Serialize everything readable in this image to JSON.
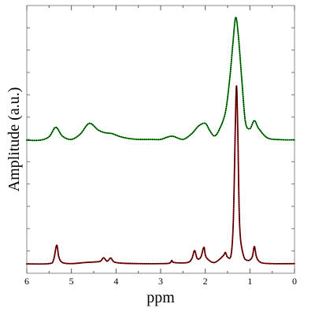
{
  "chart_data": {
    "type": "line",
    "title": "",
    "xlabel": "ppm",
    "ylabel": "Amplitude (a.u.)",
    "x_reversed": true,
    "xlim": [
      6,
      0
    ],
    "ylim": [
      0,
      1
    ],
    "xticks": [
      "6",
      "5",
      "4",
      "3",
      "2",
      "1",
      "0"
    ],
    "grid": false,
    "legend": "none",
    "series": [
      {
        "color": "#00c800",
        "style": "solid",
        "points": [
          [
            6.0,
            0.497
          ],
          [
            5.7,
            0.497
          ],
          [
            5.5,
            0.51
          ],
          [
            5.35,
            0.545
          ],
          [
            5.2,
            0.512
          ],
          [
            5.0,
            0.5
          ],
          [
            4.8,
            0.52
          ],
          [
            4.6,
            0.56
          ],
          [
            4.4,
            0.535
          ],
          [
            4.25,
            0.525
          ],
          [
            4.1,
            0.522
          ],
          [
            3.9,
            0.51
          ],
          [
            3.7,
            0.503
          ],
          [
            3.5,
            0.5
          ],
          [
            3.2,
            0.5
          ],
          [
            3.0,
            0.5
          ],
          [
            2.75,
            0.512
          ],
          [
            2.5,
            0.5
          ],
          [
            2.3,
            0.522
          ],
          [
            2.15,
            0.55
          ],
          [
            2.0,
            0.56
          ],
          [
            1.9,
            0.533
          ],
          [
            1.8,
            0.513
          ],
          [
            1.7,
            0.532
          ],
          [
            1.55,
            0.6
          ],
          [
            1.45,
            0.73
          ],
          [
            1.38,
            0.86
          ],
          [
            1.32,
            0.955
          ],
          [
            1.26,
            0.89
          ],
          [
            1.18,
            0.72
          ],
          [
            1.1,
            0.565
          ],
          [
            1.0,
            0.54
          ],
          [
            0.9,
            0.57
          ],
          [
            0.8,
            0.54
          ],
          [
            0.6,
            0.505
          ],
          [
            0.3,
            0.499
          ],
          [
            0.0,
            0.498
          ]
        ]
      },
      {
        "color": "#000000",
        "style": "dotted",
        "points": [
          [
            6.0,
            0.497
          ],
          [
            5.7,
            0.497
          ],
          [
            5.5,
            0.51
          ],
          [
            5.35,
            0.545
          ],
          [
            5.2,
            0.512
          ],
          [
            5.0,
            0.5
          ],
          [
            4.8,
            0.52
          ],
          [
            4.6,
            0.56
          ],
          [
            4.4,
            0.535
          ],
          [
            4.25,
            0.525
          ],
          [
            4.1,
            0.522
          ],
          [
            3.9,
            0.51
          ],
          [
            3.7,
            0.503
          ],
          [
            3.5,
            0.5
          ],
          [
            3.2,
            0.5
          ],
          [
            3.0,
            0.5
          ],
          [
            2.75,
            0.512
          ],
          [
            2.5,
            0.5
          ],
          [
            2.3,
            0.522
          ],
          [
            2.15,
            0.55
          ],
          [
            2.0,
            0.56
          ],
          [
            1.9,
            0.533
          ],
          [
            1.8,
            0.513
          ],
          [
            1.7,
            0.532
          ],
          [
            1.55,
            0.6
          ],
          [
            1.45,
            0.73
          ],
          [
            1.38,
            0.86
          ],
          [
            1.32,
            0.955
          ],
          [
            1.26,
            0.89
          ],
          [
            1.18,
            0.72
          ],
          [
            1.1,
            0.565
          ],
          [
            1.0,
            0.54
          ],
          [
            0.9,
            0.57
          ],
          [
            0.8,
            0.54
          ],
          [
            0.6,
            0.505
          ],
          [
            0.3,
            0.499
          ],
          [
            0.0,
            0.498
          ]
        ]
      },
      {
        "color": "#c80000",
        "style": "solid",
        "points": [
          [
            6.0,
            0.035
          ],
          [
            5.5,
            0.036
          ],
          [
            5.4,
            0.05
          ],
          [
            5.33,
            0.105
          ],
          [
            5.28,
            0.06
          ],
          [
            5.2,
            0.04
          ],
          [
            5.0,
            0.036
          ],
          [
            4.7,
            0.04
          ],
          [
            4.5,
            0.042
          ],
          [
            4.35,
            0.045
          ],
          [
            4.28,
            0.058
          ],
          [
            4.2,
            0.045
          ],
          [
            4.12,
            0.057
          ],
          [
            4.05,
            0.043
          ],
          [
            3.9,
            0.038
          ],
          [
            3.5,
            0.036
          ],
          [
            3.0,
            0.036
          ],
          [
            2.8,
            0.038
          ],
          [
            2.75,
            0.048
          ],
          [
            2.7,
            0.04
          ],
          [
            2.4,
            0.04
          ],
          [
            2.3,
            0.055
          ],
          [
            2.24,
            0.085
          ],
          [
            2.18,
            0.055
          ],
          [
            2.1,
            0.06
          ],
          [
            2.03,
            0.097
          ],
          [
            1.98,
            0.06
          ],
          [
            1.8,
            0.04
          ],
          [
            1.6,
            0.065
          ],
          [
            1.55,
            0.078
          ],
          [
            1.5,
            0.06
          ],
          [
            1.42,
            0.07
          ],
          [
            1.37,
            0.2
          ],
          [
            1.33,
            0.52
          ],
          [
            1.3,
            0.7
          ],
          [
            1.27,
            0.52
          ],
          [
            1.23,
            0.18
          ],
          [
            1.15,
            0.07
          ],
          [
            1.05,
            0.048
          ],
          [
            0.95,
            0.06
          ],
          [
            0.9,
            0.1
          ],
          [
            0.85,
            0.06
          ],
          [
            0.75,
            0.04
          ],
          [
            0.5,
            0.036
          ],
          [
            0.0,
            0.036
          ]
        ]
      },
      {
        "color": "#000000",
        "style": "dotted",
        "points": [
          [
            6.0,
            0.035
          ],
          [
            5.5,
            0.036
          ],
          [
            5.4,
            0.05
          ],
          [
            5.33,
            0.105
          ],
          [
            5.28,
            0.06
          ],
          [
            5.2,
            0.04
          ],
          [
            5.0,
            0.036
          ],
          [
            4.7,
            0.04
          ],
          [
            4.5,
            0.042
          ],
          [
            4.35,
            0.045
          ],
          [
            4.28,
            0.058
          ],
          [
            4.2,
            0.045
          ],
          [
            4.12,
            0.057
          ],
          [
            4.05,
            0.043
          ],
          [
            3.9,
            0.038
          ],
          [
            3.5,
            0.036
          ],
          [
            3.0,
            0.036
          ],
          [
            2.8,
            0.038
          ],
          [
            2.75,
            0.048
          ],
          [
            2.7,
            0.04
          ],
          [
            2.4,
            0.04
          ],
          [
            2.3,
            0.055
          ],
          [
            2.24,
            0.085
          ],
          [
            2.18,
            0.055
          ],
          [
            2.1,
            0.06
          ],
          [
            2.03,
            0.097
          ],
          [
            1.98,
            0.06
          ],
          [
            1.8,
            0.04
          ],
          [
            1.6,
            0.065
          ],
          [
            1.55,
            0.078
          ],
          [
            1.5,
            0.06
          ],
          [
            1.42,
            0.07
          ],
          [
            1.37,
            0.2
          ],
          [
            1.33,
            0.52
          ],
          [
            1.3,
            0.7
          ],
          [
            1.27,
            0.52
          ],
          [
            1.23,
            0.18
          ],
          [
            1.15,
            0.07
          ],
          [
            1.05,
            0.048
          ],
          [
            0.95,
            0.06
          ],
          [
            0.9,
            0.1
          ],
          [
            0.85,
            0.06
          ],
          [
            0.75,
            0.04
          ],
          [
            0.5,
            0.036
          ],
          [
            0.0,
            0.036
          ]
        ]
      }
    ]
  }
}
